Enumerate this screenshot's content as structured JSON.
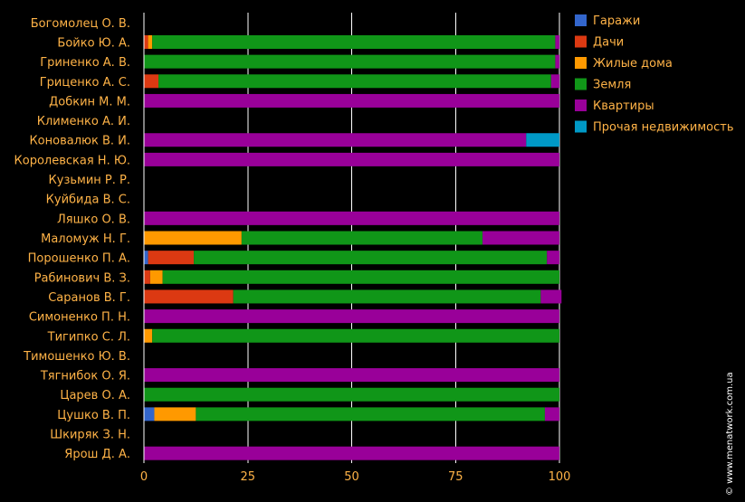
{
  "chart_data": {
    "type": "bar",
    "orientation": "horizontal",
    "stacked": true,
    "categories": [
      "Богомолец О. В.",
      "Бойко Ю. А.",
      "Гриненко А. В.",
      "Гриценко А. С.",
      "Добкин М. М.",
      "Клименко А. И.",
      "Коновалюк В. И.",
      "Королевская Н. Ю.",
      "Кузьмин Р. Р.",
      "Куйбида В. С.",
      "Ляшко О. В.",
      "Маломуж Н. Г.",
      "Порошенко П. А.",
      "Рабинович В. З.",
      "Саранов В. Г.",
      "Симоненко П. Н.",
      "Тигипко С. Л.",
      "Тимошенко Ю. В.",
      "Тягнибок О. Я.",
      "Царев О. А.",
      "Цушко В. П.",
      "Шкиряк З. Н.",
      "Ярош Д. А."
    ],
    "series": [
      {
        "name": "Гаражи",
        "color": "#3366cc",
        "values": [
          0,
          0,
          0,
          0,
          0,
          0,
          0,
          0,
          0,
          0,
          0,
          0,
          1,
          0,
          0,
          0,
          0,
          0,
          0,
          0,
          2.5,
          0,
          0
        ]
      },
      {
        "name": "Дачи",
        "color": "#dc3912",
        "values": [
          0,
          1,
          0,
          3.5,
          0,
          0,
          0,
          0,
          0,
          0,
          0,
          0,
          11,
          1.5,
          21.5,
          0,
          0,
          0,
          0,
          0,
          0,
          0,
          0
        ]
      },
      {
        "name": "Жилые дома",
        "color": "#ff9900",
        "values": [
          0,
          1,
          0,
          0,
          0,
          0,
          0,
          0,
          0,
          0,
          0,
          23.5,
          0,
          3,
          0,
          0,
          2,
          0,
          0,
          0,
          10,
          0,
          0
        ]
      },
      {
        "name": "Земля",
        "color": "#109618",
        "values": [
          0,
          97,
          99,
          94.5,
          0,
          0,
          0,
          0,
          0,
          0,
          0,
          58,
          85,
          95.5,
          74,
          0,
          98,
          0,
          0,
          100,
          84,
          0,
          0
        ]
      },
      {
        "name": "Квартиры",
        "color": "#990099",
        "values": [
          0,
          1,
          1,
          2,
          100,
          0,
          92,
          100,
          0,
          0,
          100,
          18.5,
          3,
          0,
          5,
          100,
          0,
          0,
          100,
          0,
          3.5,
          0,
          100
        ]
      },
      {
        "name": "Прочая недвижимость",
        "color": "#0099c6",
        "values": [
          0,
          0,
          0,
          0,
          0,
          0,
          8,
          0,
          0,
          0,
          0,
          0,
          0,
          0,
          0,
          0,
          0,
          0,
          0,
          0,
          0,
          0,
          0
        ]
      }
    ],
    "x_ticks": [
      0,
      25,
      50,
      75,
      100
    ],
    "xlim": [
      0,
      100
    ],
    "grid": true,
    "legend_position": "top-right",
    "label_color": "#ffb347",
    "grid_color": "#ffffff",
    "title": "",
    "xlabel": "",
    "ylabel": ""
  },
  "watermark": "© www.menatwork.com.ua"
}
